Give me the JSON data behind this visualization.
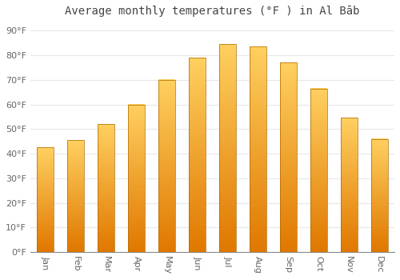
{
  "months": [
    "Jan",
    "Feb",
    "Mar",
    "Apr",
    "May",
    "Jun",
    "Jul",
    "Aug",
    "Sep",
    "Oct",
    "Nov",
    "Dec"
  ],
  "values": [
    42.5,
    45.5,
    52,
    60,
    70,
    79,
    84.5,
    83.5,
    77,
    66.5,
    54.5,
    46
  ],
  "bar_color_top": "#FFC020",
  "bar_color_bottom": "#F08000",
  "title": "Average monthly temperatures (°F ) in Al Bāb",
  "ylabel_ticks": [
    "0°F",
    "10°F",
    "20°F",
    "30°F",
    "40°F",
    "50°F",
    "60°F",
    "70°F",
    "80°F",
    "90°F"
  ],
  "ytick_values": [
    0,
    10,
    20,
    30,
    40,
    50,
    60,
    70,
    80,
    90
  ],
  "ylim": [
    0,
    93
  ],
  "background_color": "#ffffff",
  "grid_color": "#e8e8e8",
  "title_fontsize": 10,
  "tick_fontsize": 8,
  "tick_color": "#666666",
  "title_color": "#444444"
}
